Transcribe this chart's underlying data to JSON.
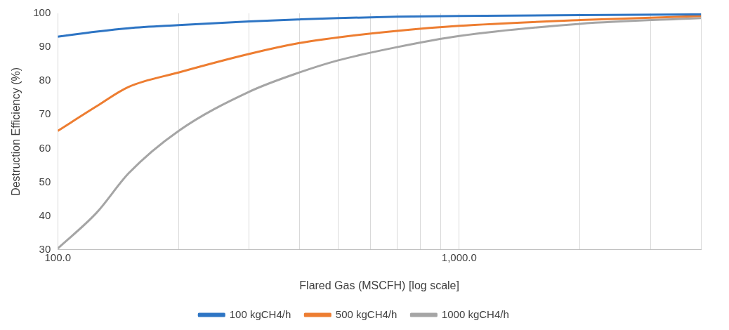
{
  "chart_data": {
    "type": "line",
    "xlabel": "Flared Gas (MSCFH) [log scale]",
    "ylabel": "Destruction Efficiency (%)",
    "log": "x",
    "grid": "x",
    "legend": "bottom",
    "marker": "none",
    "line_style": "solid",
    "xlim": [
      100,
      4000
    ],
    "xticks": [
      {
        "value": 100,
        "label": "100.0"
      },
      {
        "value": 200,
        "label": null
      },
      {
        "value": 300,
        "label": null
      },
      {
        "value": 400,
        "label": null
      },
      {
        "value": 500,
        "label": null
      },
      {
        "value": 600,
        "label": null
      },
      {
        "value": 700,
        "label": null
      },
      {
        "value": 800,
        "label": null
      },
      {
        "value": 900,
        "label": null
      },
      {
        "value": 1000,
        "label": "1,000.0"
      },
      {
        "value": 2000,
        "label": null
      },
      {
        "value": 3000,
        "label": null
      },
      {
        "value": 4000,
        "label": null
      }
    ],
    "ylim": [
      30,
      100
    ],
    "yticks": [
      30,
      40,
      50,
      60,
      70,
      80,
      90,
      100
    ],
    "x": [
      100,
      125,
      150,
      200,
      300,
      400,
      500,
      700,
      1000,
      2000,
      4000
    ],
    "series": [
      {
        "name": "100 kgCH4/h",
        "color": "#2e75c4",
        "values": [
          93.1,
          94.6,
          95.6,
          96.5,
          97.6,
          98.2,
          98.6,
          99,
          99.2,
          99.5,
          99.7
        ]
      },
      {
        "name": "500 kgCH4/h",
        "color": "#ed7d31",
        "values": [
          65.2,
          72.5,
          78.2,
          82.5,
          88,
          91.2,
          92.9,
          94.8,
          96.3,
          98,
          99.2
        ]
      },
      {
        "name": "1000 kgCH4/h",
        "color": "#a5a5a5",
        "values": [
          30.4,
          41,
          52.6,
          65.2,
          76.8,
          82.5,
          86.1,
          90,
          93.3,
          96.9,
          98.6
        ]
      }
    ]
  }
}
